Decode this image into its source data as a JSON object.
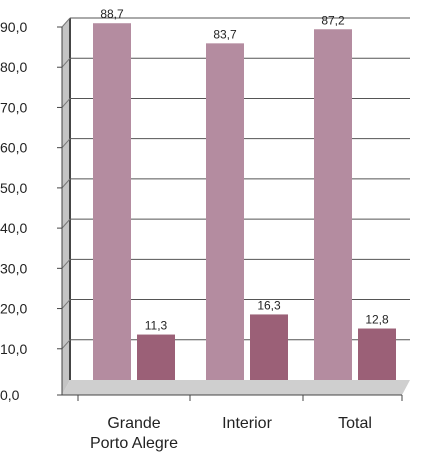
{
  "chart_data": {
    "type": "bar",
    "categories": [
      [
        "Grande",
        "Porto Alegre"
      ],
      [
        "Interior"
      ],
      [
        "Total"
      ]
    ],
    "series": [
      {
        "values": [
          88.7,
          83.7,
          87.2
        ],
        "labels": [
          "88,7",
          "83,7",
          "87,2"
        ],
        "color": "#B48CA0"
      },
      {
        "values": [
          11.3,
          16.3,
          12.8
        ],
        "labels": [
          "11,3",
          "16,3",
          "12,8"
        ],
        "color": "#9B6077"
      }
    ],
    "yticks": [
      0,
      10,
      20,
      30,
      40,
      50,
      60,
      70,
      80,
      90
    ],
    "ytick_labels": [
      "0,0",
      "10,0",
      "20,0",
      "30,0",
      "40,0",
      "50,0",
      "60,0",
      "70,0",
      "80,0",
      "90,0"
    ],
    "ylim": [
      0,
      90
    ],
    "grid": true,
    "legend": "none"
  }
}
